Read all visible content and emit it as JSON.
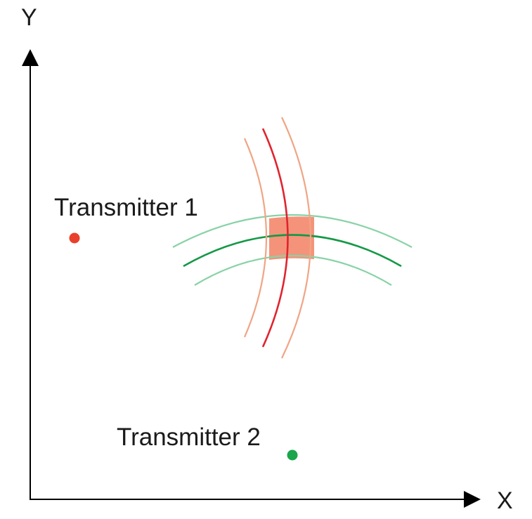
{
  "axes": {
    "x_label": "X",
    "y_label": "Y"
  },
  "transmitters": [
    {
      "label": "Transmitter 1",
      "color": "#e8402a"
    },
    {
      "label": "Transmitter 2",
      "color": "#1aa64b"
    }
  ],
  "colors": {
    "axis": "#000000",
    "tx1_center_arc": "#e0242f",
    "tx1_band_arc": "#f0a585",
    "tx2_center_arc": "#159947",
    "tx2_band_arc": "#88d2a6",
    "intersection_fill": "#f4937a"
  }
}
